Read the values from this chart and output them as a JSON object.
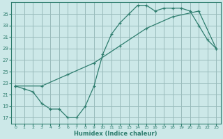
{
  "xlabel": "Humidex (Indice chaleur)",
  "bg_color": "#cce8e8",
  "grid_color": "#99bbbb",
  "line_color": "#2e7d6e",
  "xlim": [
    -0.5,
    23.5
  ],
  "ylim": [
    16.0,
    37.0
  ],
  "xticks": [
    0,
    1,
    2,
    3,
    4,
    5,
    6,
    7,
    8,
    9,
    10,
    11,
    12,
    13,
    14,
    15,
    16,
    17,
    18,
    19,
    20,
    21,
    22,
    23
  ],
  "yticks": [
    17,
    19,
    21,
    23,
    25,
    27,
    29,
    31,
    33,
    35
  ],
  "line1_x": [
    0,
    1,
    2,
    3,
    4,
    5,
    6,
    7,
    8,
    9,
    10,
    11,
    12,
    13,
    14,
    15,
    16,
    17,
    18,
    19,
    20,
    21,
    22,
    23
  ],
  "line1_y": [
    22.5,
    22.0,
    21.5,
    19.5,
    18.5,
    18.5,
    17.0,
    17.0,
    19.0,
    22.5,
    28.0,
    31.5,
    33.5,
    35.0,
    36.5,
    36.5,
    35.5,
    36.0,
    36.0,
    36.0,
    35.5,
    33.0,
    30.5,
    29.0
  ],
  "line2_x": [
    0,
    3,
    6,
    9,
    12,
    15,
    18,
    21,
    23
  ],
  "line2_y": [
    22.5,
    22.5,
    24.5,
    26.5,
    29.5,
    32.5,
    34.5,
    35.5,
    29.0
  ]
}
